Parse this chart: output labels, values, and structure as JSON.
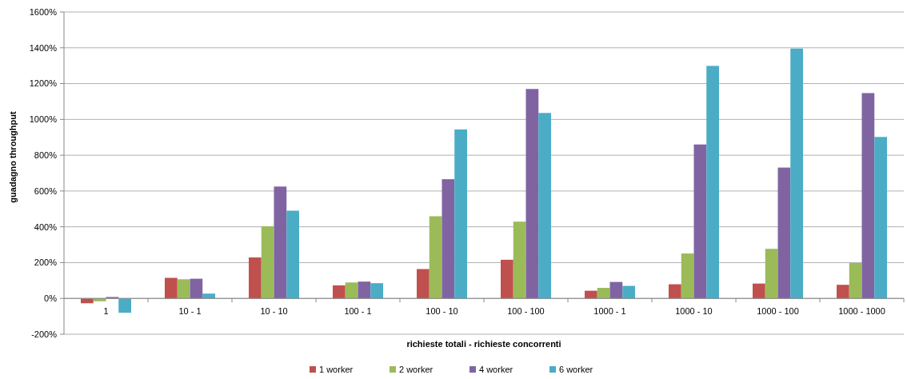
{
  "chart_data": {
    "type": "bar",
    "xlabel": "richieste totali - richieste concorrenti",
    "ylabel": "guadagno throughput",
    "categories": [
      "1",
      "10 - 1",
      "10 - 10",
      "100 - 1",
      "100 - 10",
      "100 - 100",
      "1000 - 1",
      "1000 - 10",
      "1000 - 100",
      "1000 - 1000"
    ],
    "series": [
      {
        "name": "1 worker",
        "color": "#c0504d",
        "values": [
          -27,
          115,
          229,
          73,
          164,
          216,
          43,
          79,
          83,
          76
        ]
      },
      {
        "name": "2 worker",
        "color": "#9bbb59",
        "values": [
          -16,
          107,
          403,
          89,
          459,
          429,
          59,
          251,
          277,
          198
        ]
      },
      {
        "name": "4 worker",
        "color": "#8064a2",
        "values": [
          8,
          110,
          625,
          94,
          666,
          1170,
          92,
          860,
          731,
          1147
        ]
      },
      {
        "name": "6 worker",
        "color": "#4bacc6",
        "values": [
          -80,
          27,
          490,
          85,
          944,
          1036,
          70,
          1299,
          1396,
          902
        ]
      }
    ],
    "ylim": [
      -200,
      1600
    ],
    "yticks": [
      {
        "value": -200,
        "label": "-200%"
      },
      {
        "value": 0,
        "label": "0%"
      },
      {
        "value": 200,
        "label": "200%"
      },
      {
        "value": 400,
        "label": "400%"
      },
      {
        "value": 600,
        "label": "600%"
      },
      {
        "value": 800,
        "label": "800%"
      },
      {
        "value": 1000,
        "label": "1000%"
      },
      {
        "value": 1200,
        "label": "1200%"
      },
      {
        "value": 1400,
        "label": "1400%"
      },
      {
        "value": 1600,
        "label": "1600%"
      }
    ],
    "grid": "y",
    "legend": "bottom"
  }
}
